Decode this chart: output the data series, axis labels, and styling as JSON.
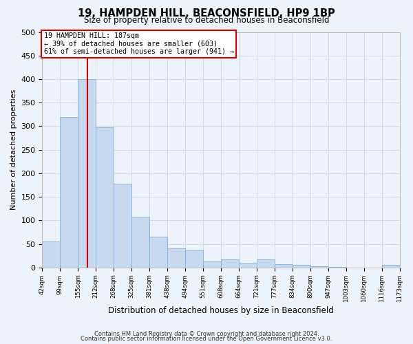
{
  "title": "19, HAMPDEN HILL, BEACONSFIELD, HP9 1BP",
  "subtitle": "Size of property relative to detached houses in Beaconsfield",
  "xlabel": "Distribution of detached houses by size in Beaconsfield",
  "ylabel": "Number of detached properties",
  "footer_line1": "Contains HM Land Registry data © Crown copyright and database right 2024.",
  "footer_line2": "Contains public sector information licensed under the Open Government Licence v3.0.",
  "annotation_title": "19 HAMPDEN HILL: 187sqm",
  "annotation_line2": "← 39% of detached houses are smaller (603)",
  "annotation_line3": "61% of semi-detached houses are larger (941) →",
  "bar_color": "#c8d8ee",
  "bar_edge_color": "#7fb3d8",
  "grid_color": "#d0dae8",
  "vline_color": "#cc0000",
  "background_color": "#eef2fa",
  "bin_labels": [
    "42sqm",
    "99sqm",
    "155sqm",
    "212sqm",
    "268sqm",
    "325sqm",
    "381sqm",
    "438sqm",
    "494sqm",
    "551sqm",
    "608sqm",
    "664sqm",
    "721sqm",
    "777sqm",
    "834sqm",
    "890sqm",
    "947sqm",
    "1003sqm",
    "1060sqm",
    "1116sqm",
    "1173sqm"
  ],
  "counts": [
    55,
    320,
    400,
    297,
    178,
    108,
    65,
    40,
    38,
    13,
    18,
    10,
    18,
    7,
    5,
    2,
    1,
    0,
    0,
    5
  ],
  "n_bins": 20,
  "vline_bin": 2.53,
  "ylim": [
    0,
    500
  ],
  "yticks": [
    0,
    50,
    100,
    150,
    200,
    250,
    300,
    350,
    400,
    450,
    500
  ]
}
